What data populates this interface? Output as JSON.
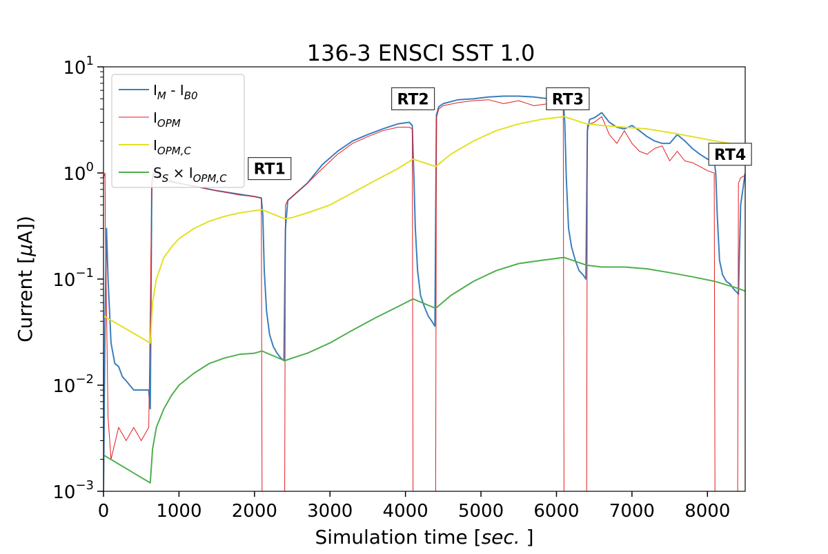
{
  "chart_data": {
    "type": "line",
    "title": "136-3 ENSCI SST 1.0",
    "xlabel": "Simulation time [sec. ]",
    "ylabel": "Current [μA])",
    "xlim": [
      0,
      8500
    ],
    "ylim": [
      0.001,
      10
    ],
    "yscale": "log",
    "grid": false,
    "legend_position": "upper-left",
    "xticks": [
      0,
      1000,
      2000,
      3000,
      4000,
      5000,
      6000,
      7000,
      8000
    ],
    "xtick_labels": [
      "0",
      "1000",
      "2000",
      "3000",
      "4000",
      "5000",
      "6000",
      "7000",
      "8000"
    ],
    "yticks": [
      {
        "value": 10,
        "base": "10",
        "exp": "1"
      },
      {
        "value": 1,
        "base": "10",
        "exp": "0"
      },
      {
        "value": 0.1,
        "base": "10",
        "exp": "−1"
      },
      {
        "value": 0.01,
        "base": "10",
        "exp": "−2"
      },
      {
        "value": 0.001,
        "base": "10",
        "exp": "−3"
      }
    ],
    "legend": [
      {
        "main": "I",
        "sub": "M",
        "mid": " - I",
        "sub2": "B0",
        "color": "#3a7ebd"
      },
      {
        "main": "I",
        "sub": "OPM",
        "mid": "",
        "sub2": "",
        "color": "#e31a1c"
      },
      {
        "main": "I",
        "sub": "OPM,C",
        "mid": "",
        "sub2": "",
        "color": "#e3e022"
      },
      {
        "main": "S",
        "sub": "S",
        "mid": " × I",
        "sub2": "OPM,C",
        "color": "#4daf4a"
      }
    ],
    "annotations": [
      {
        "text": "RT1",
        "x": 2200,
        "y": 1.1
      },
      {
        "text": "RT2",
        "x": 4100,
        "y": 5.0
      },
      {
        "text": "RT3",
        "x": 6150,
        "y": 5.0
      },
      {
        "text": "RT4",
        "x": 8300,
        "y": 1.5
      }
    ],
    "series": [
      {
        "name": "I_M - I_B0",
        "color": "#3a7ebd",
        "x": [
          0,
          20,
          40,
          60,
          100,
          150,
          200,
          250,
          300,
          400,
          500,
          600,
          620,
          640,
          660,
          700,
          800,
          1000,
          1200,
          1500,
          1800,
          2000,
          2090,
          2110,
          2130,
          2160,
          2200,
          2250,
          2300,
          2350,
          2390,
          2410,
          2440,
          2500,
          2700,
          2900,
          3100,
          3300,
          3500,
          3700,
          3900,
          4050,
          4090,
          4110,
          4130,
          4160,
          4200,
          4250,
          4300,
          4350,
          4390,
          4410,
          4440,
          4500,
          4700,
          4900,
          5100,
          5300,
          5500,
          5700,
          5900,
          6050,
          6090,
          6110,
          6130,
          6160,
          6200,
          6250,
          6300,
          6350,
          6390,
          6410,
          6440,
          6500,
          6600,
          6700,
          6800,
          6900,
          7000,
          7100,
          7200,
          7300,
          7400,
          7500,
          7600,
          7700,
          7800,
          7900,
          8000,
          8090,
          8110,
          8130,
          8160,
          8200,
          8250,
          8300,
          8350,
          8390,
          8410,
          8440,
          8500
        ],
        "y": [
          0.001,
          0.04,
          0.3,
          0.1,
          0.025,
          0.016,
          0.015,
          0.012,
          0.011,
          0.009,
          0.009,
          0.009,
          0.006,
          0.8,
          1.0,
          0.95,
          0.85,
          0.8,
          0.75,
          0.68,
          0.63,
          0.6,
          0.58,
          0.4,
          0.12,
          0.05,
          0.03,
          0.023,
          0.02,
          0.018,
          0.017,
          0.3,
          0.55,
          0.6,
          0.8,
          1.2,
          1.6,
          2.0,
          2.3,
          2.6,
          2.9,
          3.0,
          2.8,
          1.0,
          0.3,
          0.12,
          0.07,
          0.055,
          0.045,
          0.04,
          0.036,
          3.5,
          4.2,
          4.5,
          4.9,
          5.0,
          5.2,
          5.3,
          5.3,
          5.2,
          5.0,
          5.0,
          4.8,
          3.0,
          0.9,
          0.3,
          0.2,
          0.15,
          0.12,
          0.11,
          0.1,
          2.5,
          3.2,
          3.3,
          3.7,
          3.0,
          2.7,
          2.6,
          2.8,
          2.5,
          2.2,
          2.0,
          1.9,
          1.9,
          2.3,
          2.0,
          1.7,
          1.5,
          1.35,
          1.3,
          1.0,
          0.4,
          0.15,
          0.11,
          0.095,
          0.09,
          0.08,
          0.075,
          0.072,
          0.5,
          1.0
        ]
      },
      {
        "name": "I_OPM",
        "color": "#e31a1c",
        "x": [
          0,
          20,
          25,
          60,
          100,
          200,
          300,
          400,
          500,
          600,
          640,
          660,
          700,
          800,
          1000,
          1200,
          1500,
          1800,
          2000,
          2090,
          2100,
          2110,
          2390,
          2400,
          2410,
          2440,
          2500,
          2700,
          2900,
          3100,
          3300,
          3500,
          3700,
          3900,
          4050,
          4090,
          4100,
          4110,
          4390,
          4400,
          4410,
          4440,
          4500,
          4700,
          4900,
          5100,
          5300,
          5500,
          5700,
          5900,
          6050,
          6090,
          6100,
          6110,
          6390,
          6400,
          6410,
          6440,
          6500,
          6600,
          6700,
          6800,
          6900,
          7000,
          7100,
          7200,
          7300,
          7400,
          7500,
          7600,
          7700,
          7800,
          7900,
          8000,
          8090,
          8100,
          8110,
          8390,
          8400,
          8410,
          8440,
          8500
        ],
        "y": [
          0.9,
          1.0,
          0.3,
          0.005,
          0.002,
          0.004,
          0.003,
          0.004,
          0.003,
          0.004,
          0.7,
          1.0,
          0.95,
          0.9,
          0.8,
          0.75,
          0.68,
          0.62,
          0.6,
          0.58,
          0.001,
          0.001,
          0.001,
          0.001,
          0.5,
          0.55,
          0.6,
          0.8,
          1.1,
          1.5,
          1.9,
          2.2,
          2.5,
          2.7,
          2.7,
          2.6,
          0.001,
          0.001,
          0.001,
          0.001,
          3.3,
          4.0,
          4.3,
          4.6,
          4.8,
          4.9,
          4.5,
          4.8,
          4.3,
          4.5,
          4.2,
          4.0,
          0.001,
          0.001,
          0.001,
          0.001,
          2.8,
          2.9,
          3.0,
          3.4,
          2.3,
          1.9,
          2.5,
          1.9,
          1.6,
          1.5,
          1.7,
          1.8,
          1.3,
          1.6,
          1.3,
          1.25,
          1.15,
          1.05,
          1.0,
          0.001,
          0.001,
          0.001,
          0.001,
          0.8,
          0.9,
          0.95
        ]
      },
      {
        "name": "I_OPM,C",
        "color": "#e3e022",
        "x": [
          0,
          620,
          650,
          700,
          800,
          900,
          1000,
          1200,
          1400,
          1600,
          1800,
          2000,
          2100,
          2400,
          2500,
          2700,
          3000,
          3300,
          3600,
          3900,
          4100,
          4400,
          4600,
          4900,
          5200,
          5500,
          5800,
          6100,
          6400,
          6600,
          6900,
          7200,
          7500,
          7800,
          8100,
          8400,
          8500
        ],
        "y": [
          0.045,
          0.025,
          0.06,
          0.1,
          0.16,
          0.2,
          0.24,
          0.3,
          0.35,
          0.39,
          0.42,
          0.44,
          0.45,
          0.37,
          0.38,
          0.42,
          0.5,
          0.65,
          0.85,
          1.1,
          1.35,
          1.15,
          1.5,
          2.0,
          2.5,
          2.9,
          3.2,
          3.4,
          2.9,
          2.8,
          2.7,
          2.6,
          2.4,
          2.2,
          2.0,
          1.85,
          1.75
        ]
      },
      {
        "name": "S_S × I_OPM,C",
        "color": "#4daf4a",
        "x": [
          0,
          620,
          650,
          700,
          800,
          900,
          1000,
          1200,
          1400,
          1600,
          1800,
          2000,
          2100,
          2400,
          2500,
          2700,
          3000,
          3300,
          3600,
          3900,
          4100,
          4400,
          4600,
          4900,
          5200,
          5500,
          5800,
          6100,
          6400,
          6600,
          6900,
          7200,
          7500,
          7800,
          8100,
          8400,
          8500
        ],
        "y": [
          0.0022,
          0.0012,
          0.0025,
          0.004,
          0.006,
          0.008,
          0.01,
          0.013,
          0.016,
          0.018,
          0.0195,
          0.02,
          0.021,
          0.017,
          0.018,
          0.02,
          0.025,
          0.033,
          0.043,
          0.055,
          0.065,
          0.053,
          0.07,
          0.095,
          0.12,
          0.14,
          0.15,
          0.16,
          0.135,
          0.13,
          0.13,
          0.125,
          0.115,
          0.105,
          0.095,
          0.082,
          0.077
        ]
      }
    ]
  }
}
